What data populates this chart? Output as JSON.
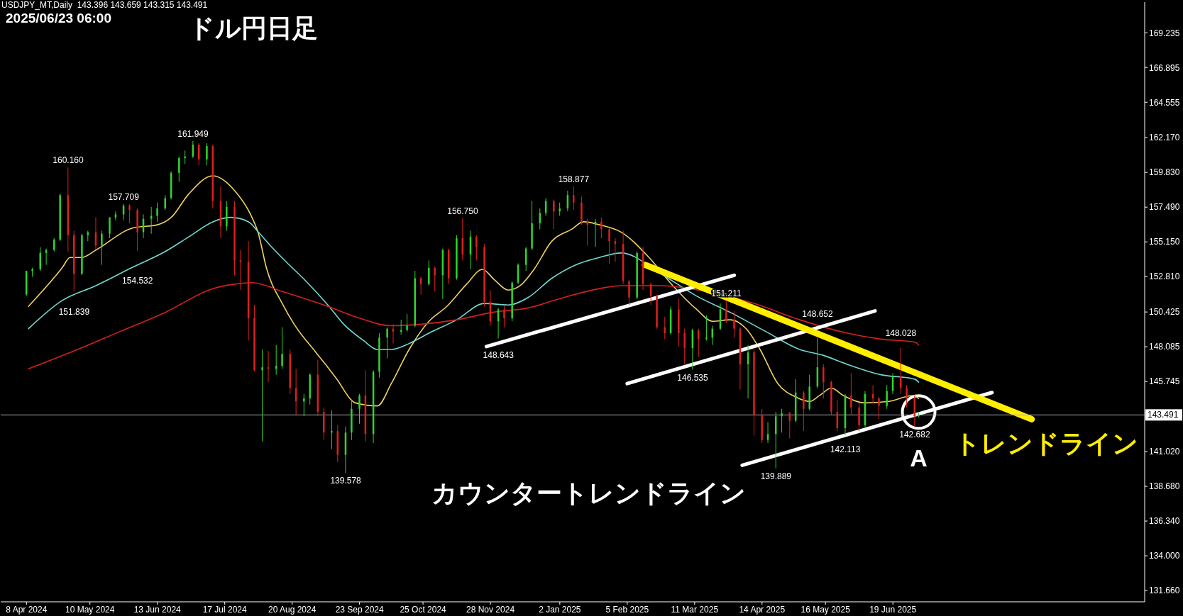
{
  "chart_data": {
    "type": "candlestick",
    "title": "ドル円日足",
    "subtitle": "2025/06/23 06:00",
    "annotations": [
      "USDJPY_MT,Daily  143.396 143.659 143.315 143.491",
      "カウンタートレンドライン",
      "A",
      {
        "text": "160.160",
        "x": "2024-04-29",
        "y": 160.16
      },
      {
        "text": "151.839",
        "x": "2024-05-02",
        "y": 151.839
      },
      {
        "text": "157.709",
        "x": "2024-05-27",
        "y": 157.709
      },
      {
        "text": "154.532",
        "x": "2024-06-03",
        "y": 154.532
      },
      {
        "text": "161.949",
        "x": "2024-07-01",
        "y": 161.949
      },
      {
        "text": "139.578",
        "x": "2024-09-16",
        "y": 139.578
      },
      {
        "text": "156.750",
        "x": "2024-11-14",
        "y": 156.75
      },
      {
        "text": "148.643",
        "x": "2024-12-02",
        "y": 148.643
      },
      {
        "text": "158.877",
        "x": "2025-01-09",
        "y": 158.877
      },
      {
        "text": "146.535",
        "x": "2025-03-10",
        "y": 146.535
      },
      {
        "text": "151.211",
        "x": "2025-03-27",
        "y": 151.211
      },
      {
        "text": "139.889",
        "x": "2025-04-21",
        "y": 139.889
      },
      {
        "text": "148.652",
        "x": "2025-05-12",
        "y": 148.652
      },
      {
        "text": "142.113",
        "x": "2025-05-26",
        "y": 142.113
      },
      {
        "text": "148.028",
        "x": "2025-06-23",
        "y": 148.028
      },
      {
        "text": "142.682",
        "x": "2025-06-30",
        "y": 142.682
      }
    ],
    "x": [
      "2024-04-08",
      "2024-04-11",
      "2024-04-15",
      "2024-04-18",
      "2024-04-22",
      "2024-04-25",
      "2024-04-29",
      "2024-05-02",
      "2024-05-06",
      "2024-05-09",
      "2024-05-13",
      "2024-05-16",
      "2024-05-20",
      "2024-05-23",
      "2024-05-27",
      "2024-05-30",
      "2024-06-03",
      "2024-06-06",
      "2024-06-10",
      "2024-06-13",
      "2024-06-17",
      "2024-06-20",
      "2024-06-24",
      "2024-06-27",
      "2024-07-01",
      "2024-07-04",
      "2024-07-08",
      "2024-07-11",
      "2024-07-15",
      "2024-07-18",
      "2024-07-22",
      "2024-07-25",
      "2024-07-29",
      "2024-08-01",
      "2024-08-05",
      "2024-08-08",
      "2024-08-12",
      "2024-08-15",
      "2024-08-19",
      "2024-08-22",
      "2024-08-26",
      "2024-08-29",
      "2024-09-02",
      "2024-09-05",
      "2024-09-09",
      "2024-09-12",
      "2024-09-16",
      "2024-09-19",
      "2024-09-23",
      "2024-09-26",
      "2024-09-30",
      "2024-10-03",
      "2024-10-07",
      "2024-10-10",
      "2024-10-14",
      "2024-10-17",
      "2024-10-21",
      "2024-10-24",
      "2024-10-28",
      "2024-10-31",
      "2024-11-04",
      "2024-11-07",
      "2024-11-11",
      "2024-11-14",
      "2024-11-18",
      "2024-11-21",
      "2024-11-25",
      "2024-11-28",
      "2024-12-02",
      "2024-12-05",
      "2024-12-09",
      "2024-12-12",
      "2024-12-16",
      "2024-12-19",
      "2024-12-23",
      "2024-12-26",
      "2024-12-30",
      "2025-01-02",
      "2025-01-06",
      "2025-01-09",
      "2025-01-13",
      "2025-01-16",
      "2025-01-20",
      "2025-01-23",
      "2025-01-27",
      "2025-01-30",
      "2025-02-03",
      "2025-02-06",
      "2025-02-10",
      "2025-02-13",
      "2025-02-17",
      "2025-02-20",
      "2025-02-24",
      "2025-02-27",
      "2025-03-03",
      "2025-03-06",
      "2025-03-10",
      "2025-03-13",
      "2025-03-17",
      "2025-03-20",
      "2025-03-24",
      "2025-03-27",
      "2025-03-31",
      "2025-04-03",
      "2025-04-07",
      "2025-04-10",
      "2025-04-14",
      "2025-04-17",
      "2025-04-21",
      "2025-04-24",
      "2025-04-28",
      "2025-05-01",
      "2025-05-05",
      "2025-05-08",
      "2025-05-12",
      "2025-05-15",
      "2025-05-19",
      "2025-05-22",
      "2025-05-26",
      "2025-05-29",
      "2025-06-02",
      "2025-06-05",
      "2025-06-09",
      "2025-06-12",
      "2025-06-16",
      "2025-06-19",
      "2025-06-23",
      "2025-06-26",
      "2025-06-30",
      "2025-07-02"
    ],
    "ohlc": [
      [
        151.6,
        153.2,
        151.5,
        153.2
      ],
      [
        153.2,
        153.4,
        152.8,
        153.3
      ],
      [
        153.3,
        154.8,
        153.2,
        154.4
      ],
      [
        154.4,
        154.7,
        153.6,
        154.6
      ],
      [
        154.6,
        155.4,
        154.5,
        155.3
      ],
      [
        155.3,
        158.4,
        155.2,
        158.3
      ],
      [
        158.3,
        160.16,
        154.5,
        155.6
      ],
      [
        155.6,
        155.9,
        151.839,
        153.0
      ],
      [
        153.0,
        155.7,
        152.9,
        155.6
      ],
      [
        155.6,
        155.9,
        155.2,
        155.8
      ],
      [
        155.8,
        156.8,
        154.6,
        154.9
      ],
      [
        154.9,
        155.9,
        153.6,
        155.7
      ],
      [
        155.7,
        156.8,
        155.4,
        156.8
      ],
      [
        156.8,
        157.2,
        156.6,
        157.0
      ],
      [
        157.0,
        157.709,
        156.6,
        157.6
      ],
      [
        157.6,
        157.7,
        156.4,
        157.3
      ],
      [
        157.3,
        157.4,
        154.532,
        155.8
      ],
      [
        155.8,
        157.0,
        155.4,
        156.7
      ],
      [
        156.7,
        157.5,
        155.7,
        156.9
      ],
      [
        156.9,
        157.8,
        156.5,
        157.4
      ],
      [
        157.4,
        158.3,
        157.3,
        158.1
      ],
      [
        158.1,
        159.9,
        158.0,
        159.8
      ],
      [
        159.8,
        160.9,
        159.2,
        160.8
      ],
      [
        160.8,
        161.3,
        160.4,
        160.9
      ],
      [
        160.9,
        161.949,
        160.8,
        161.7
      ],
      [
        161.7,
        161.8,
        160.3,
        160.7
      ],
      [
        160.7,
        161.8,
        160.3,
        161.6
      ],
      [
        161.6,
        161.7,
        157.4,
        157.9
      ],
      [
        157.9,
        158.9,
        155.4,
        156.2
      ],
      [
        156.2,
        157.9,
        155.9,
        157.5
      ],
      [
        157.5,
        157.9,
        152.9,
        153.9
      ],
      [
        153.9,
        154.6,
        151.9,
        153.8
      ],
      [
        153.8,
        155.2,
        148.5,
        150.0
      ],
      [
        150.0,
        150.9,
        146.4,
        146.5
      ],
      [
        146.5,
        147.9,
        141.7,
        146.7
      ],
      [
        146.7,
        147.8,
        145.7,
        146.6
      ],
      [
        146.6,
        148.2,
        146.2,
        146.8
      ],
      [
        146.8,
        149.4,
        146.6,
        147.6
      ],
      [
        147.6,
        147.9,
        144.9,
        145.3
      ],
      [
        145.3,
        146.6,
        143.5,
        144.4
      ],
      [
        144.4,
        144.9,
        143.4,
        144.6
      ],
      [
        144.6,
        146.3,
        144.2,
        146.2
      ],
      [
        146.2,
        147.2,
        143.4,
        143.7
      ],
      [
        143.7,
        144.0,
        141.8,
        142.3
      ],
      [
        142.3,
        143.8,
        141.2,
        142.4
      ],
      [
        142.4,
        142.8,
        140.3,
        140.8
      ],
      [
        140.8,
        142.7,
        139.578,
        142.3
      ],
      [
        142.3,
        144.5,
        141.8,
        143.9
      ],
      [
        143.9,
        144.9,
        142.9,
        144.8
      ],
      [
        144.8,
        146.5,
        141.7,
        142.2
      ],
      [
        142.2,
        146.5,
        141.6,
        146.4
      ],
      [
        146.4,
        149.0,
        146.0,
        148.7
      ],
      [
        148.7,
        149.4,
        147.3,
        149.3
      ],
      [
        149.3,
        149.6,
        148.3,
        149.1
      ],
      [
        149.1,
        149.9,
        148.9,
        149.2
      ],
      [
        149.2,
        150.3,
        149.1,
        149.5
      ],
      [
        149.5,
        153.2,
        149.4,
        152.7
      ],
      [
        152.7,
        152.8,
        151.6,
        152.3
      ],
      [
        152.3,
        153.9,
        152.2,
        153.4
      ],
      [
        153.4,
        153.5,
        151.8,
        152.9
      ],
      [
        152.9,
        154.7,
        151.3,
        154.6
      ],
      [
        154.6,
        154.7,
        152.3,
        152.7
      ],
      [
        152.7,
        155.6,
        152.6,
        155.4
      ],
      [
        155.4,
        156.75,
        153.9,
        154.3
      ],
      [
        154.3,
        155.9,
        153.3,
        155.5
      ],
      [
        155.5,
        155.6,
        153.9,
        154.8
      ],
      [
        154.8,
        155.0,
        150.8,
        151.1
      ],
      [
        151.1,
        151.9,
        149.5,
        149.8
      ],
      [
        149.8,
        150.7,
        148.643,
        150.6
      ],
      [
        150.6,
        150.9,
        149.4,
        150.0
      ],
      [
        150.0,
        152.5,
        149.8,
        152.4
      ],
      [
        152.4,
        153.7,
        152.3,
        153.6
      ],
      [
        153.6,
        154.8,
        153.2,
        154.7
      ],
      [
        154.7,
        157.9,
        154.6,
        156.4
      ],
      [
        156.4,
        157.4,
        156.0,
        157.1
      ],
      [
        157.1,
        158.1,
        156.9,
        157.9
      ],
      [
        157.9,
        158.0,
        156.0,
        157.2
      ],
      [
        157.2,
        157.8,
        156.9,
        157.4
      ],
      [
        157.4,
        158.6,
        157.2,
        158.3
      ],
      [
        158.3,
        158.877,
        157.3,
        157.8
      ],
      [
        157.8,
        158.2,
        156.3,
        156.5
      ],
      [
        156.5,
        156.7,
        154.9,
        156.3
      ],
      [
        156.3,
        156.7,
        154.8,
        156.5
      ],
      [
        156.5,
        156.8,
        155.4,
        156.0
      ],
      [
        156.0,
        156.1,
        153.7,
        155.2
      ],
      [
        155.2,
        155.4,
        153.8,
        155.0
      ],
      [
        155.0,
        155.9,
        152.3,
        152.5
      ],
      [
        152.5,
        152.6,
        150.9,
        151.4
      ],
      [
        151.4,
        154.5,
        151.3,
        154.4
      ],
      [
        154.4,
        154.8,
        151.9,
        152.3
      ],
      [
        152.3,
        152.4,
        150.9,
        151.5
      ],
      [
        151.5,
        151.6,
        149.3,
        149.4
      ],
      [
        149.4,
        150.1,
        148.6,
        149.0
      ],
      [
        149.0,
        150.8,
        148.9,
        150.6
      ],
      [
        150.6,
        151.3,
        148.1,
        149.0
      ],
      [
        149.0,
        149.3,
        146.9,
        148.0
      ],
      [
        148.0,
        149.3,
        146.535,
        149.2
      ],
      [
        149.2,
        149.3,
        147.4,
        148.6
      ],
      [
        148.6,
        150.2,
        148.5,
        148.7
      ],
      [
        148.7,
        149.5,
        148.2,
        149.3
      ],
      [
        149.3,
        151.0,
        149.2,
        150.6
      ],
      [
        150.6,
        151.211,
        149.7,
        149.9
      ],
      [
        149.9,
        150.5,
        148.7,
        149.3
      ],
      [
        149.3,
        149.4,
        145.2,
        146.9
      ],
      [
        146.9,
        148.2,
        144.6,
        147.7
      ],
      [
        147.7,
        148.0,
        142.1,
        143.5
      ],
      [
        143.5,
        143.9,
        141.6,
        141.8
      ],
      [
        141.8,
        143.0,
        141.6,
        142.2
      ],
      [
        142.2,
        143.7,
        139.889,
        143.4
      ],
      [
        143.4,
        143.9,
        142.3,
        143.6
      ],
      [
        143.6,
        143.7,
        141.9,
        143.1
      ],
      [
        143.1,
        145.9,
        143.0,
        145.0
      ],
      [
        145.0,
        145.1,
        142.4,
        143.9
      ],
      [
        143.9,
        146.2,
        143.8,
        145.4
      ],
      [
        145.4,
        148.652,
        145.3,
        146.7
      ],
      [
        146.7,
        146.9,
        144.6,
        145.7
      ],
      [
        145.7,
        145.8,
        143.5,
        143.7
      ],
      [
        143.7,
        144.5,
        142.4,
        142.6
      ],
      [
        142.6,
        144.9,
        142.113,
        144.8
      ],
      [
        144.8,
        146.3,
        143.5,
        144.0
      ],
      [
        144.0,
        144.3,
        142.4,
        142.8
      ],
      [
        142.8,
        145.1,
        142.7,
        144.9
      ],
      [
        144.9,
        145.5,
        144.3,
        144.6
      ],
      [
        144.6,
        144.7,
        143.2,
        144.1
      ],
      [
        144.1,
        145.5,
        143.9,
        145.1
      ],
      [
        145.1,
        146.3,
        144.9,
        146.1
      ],
      [
        146.1,
        148.028,
        144.9,
        145.3
      ],
      [
        145.3,
        145.5,
        144.0,
        144.6
      ],
      [
        144.6,
        144.8,
        142.682,
        143.4
      ],
      [
        143.396,
        143.659,
        143.315,
        143.491
      ]
    ],
    "colors": [
      "#2fd52f",
      "#2fd52f",
      "#2fd52f",
      "#2fd52f",
      "#2fd52f",
      "#2fd52f",
      "#dc1f1f",
      "#dc1f1f",
      "#2fd52f",
      "#2fd52f",
      "#dc1f1f",
      "#2fd52f",
      "#2fd52f",
      "#2fd52f",
      "#2fd52f",
      "#dc1f1f",
      "#dc1f1f",
      "#2fd52f",
      "#2fd52f",
      "#2fd52f",
      "#2fd52f",
      "#2fd52f",
      "#2fd52f",
      "#2fd52f",
      "#2fd52f",
      "#dc1f1f",
      "#2fd52f",
      "#dc1f1f",
      "#dc1f1f",
      "#2fd52f",
      "#dc1f1f",
      "#dc1f1f",
      "#dc1f1f",
      "#dc1f1f",
      "#2fd52f",
      "#dc1f1f",
      "#2fd52f",
      "#2fd52f",
      "#dc1f1f",
      "#dc1f1f",
      "#2fd52f",
      "#2fd52f",
      "#dc1f1f",
      "#dc1f1f",
      "#2fd52f",
      "#dc1f1f",
      "#2fd52f",
      "#2fd52f",
      "#2fd52f",
      "#dc1f1f",
      "#2fd52f",
      "#2fd52f",
      "#2fd52f",
      "#dc1f1f",
      "#2fd52f",
      "#2fd52f",
      "#2fd52f",
      "#dc1f1f",
      "#2fd52f",
      "#dc1f1f",
      "#2fd52f",
      "#dc1f1f",
      "#2fd52f",
      "#dc1f1f",
      "#2fd52f",
      "#dc1f1f",
      "#dc1f1f",
      "#dc1f1f",
      "#2fd52f",
      "#dc1f1f",
      "#2fd52f",
      "#2fd52f",
      "#2fd52f",
      "#2fd52f",
      "#2fd52f",
      "#2fd52f",
      "#dc1f1f",
      "#2fd52f",
      "#2fd52f",
      "#dc1f1f",
      "#dc1f1f",
      "#dc1f1f",
      "#2fd52f",
      "#dc1f1f",
      "#dc1f1f",
      "#dc1f1f",
      "#dc1f1f",
      "#dc1f1f",
      "#2fd52f",
      "#dc1f1f",
      "#dc1f1f",
      "#dc1f1f",
      "#dc1f1f",
      "#2fd52f",
      "#dc1f1f",
      "#dc1f1f",
      "#2fd52f",
      "#dc1f1f",
      "#2fd52f",
      "#2fd52f",
      "#2fd52f",
      "#dc1f1f",
      "#dc1f1f",
      "#dc1f1f",
      "#2fd52f",
      "#dc1f1f",
      "#dc1f1f",
      "#2fd52f",
      "#2fd52f",
      "#2fd52f",
      "#dc1f1f",
      "#2fd52f",
      "#dc1f1f",
      "#2fd52f",
      "#2fd52f",
      "#dc1f1f",
      "#dc1f1f",
      "#dc1f1f",
      "#2fd52f",
      "#dc1f1f",
      "#dc1f1f",
      "#2fd52f",
      "#dc1f1f",
      "#dc1f1f",
      "#2fd52f",
      "#2fd52f",
      "#dc1f1f",
      "#dc1f1f",
      "#dc1f1f",
      "#2fd52f"
    ],
    "series": [
      {
        "type": "line",
        "color": "#f0d060",
        "x": [
          "2024-04-09",
          "2024-04-26",
          "2024-04-30",
          "2024-05-06",
          "2024-05-13",
          "2024-06-01",
          "2024-06-13",
          "2024-06-20",
          "2024-06-29",
          "2024-07-11",
          "2024-07-22",
          "2024-07-30",
          "2024-08-03",
          "2024-08-07",
          "2024-08-15",
          "2024-08-21",
          "2024-09-01",
          "2024-09-07",
          "2024-09-11",
          "2024-09-21",
          "2024-10-02",
          "2024-10-09",
          "2024-10-18",
          "2024-10-28",
          "2024-11-06",
          "2024-11-16",
          "2024-11-24",
          "2024-11-30",
          "2024-12-07",
          "2024-12-13",
          "2024-12-20",
          "2024-12-29",
          "2025-01-08",
          "2025-01-14",
          "2025-01-22",
          "2025-02-02",
          "2025-02-16",
          "2025-02-28",
          "2025-03-12",
          "2025-03-20",
          "2025-03-29",
          "2025-04-06",
          "2025-04-13",
          "2025-04-22",
          "2025-05-01",
          "2025-05-08",
          "2025-05-13",
          "2025-05-19",
          "2025-05-25",
          "2025-06-05",
          "2025-06-17",
          "2025-06-29",
          "2025-07-02"
        ],
        "values": [
          150.8,
          153.4,
          154.1,
          154.1,
          154.6,
          156.1,
          156.3,
          156.8,
          158.4,
          159.6,
          158.6,
          157.0,
          155.7,
          153.4,
          151.0,
          149.6,
          147.7,
          146.7,
          146.0,
          144.3,
          144.1,
          145.6,
          147.9,
          149.8,
          150.8,
          152.3,
          153.3,
          152.6,
          151.9,
          152.2,
          153.3,
          155.2,
          156.0,
          156.5,
          156.3,
          155.8,
          154.1,
          152.2,
          150.6,
          149.8,
          149.9,
          149.3,
          147.9,
          145.6,
          144.7,
          144.4,
          144.8,
          145.3,
          144.8,
          144.3,
          144.4,
          144.8,
          144.6
        ]
      },
      {
        "type": "line",
        "color": "#70d8d0",
        "x": [
          "2024-04-09",
          "2024-04-26",
          "2024-05-13",
          "2024-05-31",
          "2024-06-17",
          "2024-06-29",
          "2024-07-11",
          "2024-07-20",
          "2024-07-29",
          "2024-08-03",
          "2024-08-09",
          "2024-08-17",
          "2024-08-27",
          "2024-09-07",
          "2024-09-15",
          "2024-09-25",
          "2024-10-02",
          "2024-10-09",
          "2024-10-18",
          "2024-10-28",
          "2024-11-11",
          "2024-11-25",
          "2024-12-07",
          "2024-12-17",
          "2024-12-29",
          "2025-01-10",
          "2025-01-22",
          "2025-02-02",
          "2025-02-22",
          "2025-03-12",
          "2025-03-29",
          "2025-04-16",
          "2025-05-03",
          "2025-05-15",
          "2025-05-27",
          "2025-06-13",
          "2025-06-30",
          "2025-07-02"
        ],
        "values": [
          149.3,
          151.2,
          152.2,
          153.4,
          154.5,
          155.5,
          156.5,
          156.8,
          156.5,
          155.8,
          154.9,
          153.8,
          152.5,
          150.9,
          149.6,
          148.5,
          147.9,
          147.9,
          148.3,
          149.0,
          149.9,
          151.0,
          150.9,
          151.4,
          152.7,
          153.6,
          154.1,
          154.4,
          153.0,
          151.5,
          150.4,
          149.1,
          147.9,
          147.5,
          146.9,
          146.2,
          145.9,
          145.7
        ]
      },
      {
        "type": "line",
        "color": "#d42020",
        "x": [
          "2024-04-09",
          "2024-05-02",
          "2024-05-25",
          "2024-06-17",
          "2024-07-11",
          "2024-07-22",
          "2024-07-31",
          "2024-08-15",
          "2024-09-07",
          "2024-09-21",
          "2024-10-09",
          "2024-10-24",
          "2024-11-11",
          "2024-11-29",
          "2024-12-17",
          "2025-01-04",
          "2025-01-22",
          "2025-02-02",
          "2025-02-22",
          "2025-03-17",
          "2025-04-10",
          "2025-05-03",
          "2025-05-27",
          "2025-06-13",
          "2025-06-30",
          "2025-07-02"
        ],
        "values": [
          146.6,
          147.8,
          149.1,
          150.4,
          152.0,
          152.3,
          152.4,
          151.8,
          150.8,
          150.1,
          149.5,
          149.6,
          149.9,
          150.4,
          150.7,
          151.4,
          152.0,
          152.2,
          152.2,
          151.8,
          151.0,
          149.9,
          149.0,
          148.6,
          148.4,
          148.2
        ]
      },
      {
        "type": "line",
        "color": "#ffffff",
        "x": [
          "2024-11-26",
          "2025-03-31"
        ],
        "values": [
          148.1,
          152.9
        ]
      },
      {
        "type": "line",
        "color": "#ffffff",
        "x": [
          "2025-02-05",
          "2025-06-10"
        ],
        "values": [
          145.6,
          150.5
        ]
      },
      {
        "type": "line",
        "color": "#ffffff",
        "x": [
          "2025-04-04",
          "2025-08-08"
        ],
        "values": [
          140.1,
          145.0
        ]
      },
      {
        "type": "line",
        "name": "トレンドライン",
        "color": "#ffee00",
        "x": [
          "2025-02-14",
          "2025-08-28"
        ],
        "values": [
          153.6,
          143.2
        ]
      }
    ],
    "xlim": [
      "2024-03-26",
      "2025-10-24"
    ],
    "xticks": [
      {
        "value": "2024-04-08",
        "label": "8 Apr 2024"
      },
      {
        "value": "2024-05-10",
        "label": "10 May 2024"
      },
      {
        "value": "2024-06-13",
        "label": "13 Jun 2024"
      },
      {
        "value": "2024-07-17",
        "label": "17 Jul 2024"
      },
      {
        "value": "2024-08-20",
        "label": "20 Aug 2024"
      },
      {
        "value": "2024-09-23",
        "label": "23 Sep 2024"
      },
      {
        "value": "2024-10-25",
        "label": "25 Oct 2024"
      },
      {
        "value": "2024-11-28",
        "label": "28 Nov 2024"
      },
      {
        "value": "2025-01-02",
        "label": "2 Jan 2025"
      },
      {
        "value": "2025-02-05",
        "label": "5 Feb 2025"
      },
      {
        "value": "2025-03-11",
        "label": "11 Mar 2025"
      },
      {
        "value": "2025-04-14",
        "label": "14 Apr 2025"
      },
      {
        "value": "2025-05-16",
        "label": "16 May 2025"
      },
      {
        "value": "2025-06-19",
        "label": "19 Jun 2025"
      }
    ],
    "ylim": [
      130.9,
      171.3
    ],
    "yticks": [
      {
        "value": 131.66,
        "label": "131.660"
      },
      {
        "value": 134,
        "label": "134.000"
      },
      {
        "value": 136.34,
        "label": "136.340"
      },
      {
        "value": 138.68,
        "label": "138.680"
      },
      {
        "value": 141.02,
        "label": "141.020"
      },
      145.745,
      148.085,
      150.425,
      {
        "value": 152.81,
        "label": "152.810"
      },
      {
        "value": 155.15,
        "label": "155.150"
      },
      {
        "value": 157.49,
        "label": "157.490"
      },
      {
        "value": 159.83,
        "label": "159.830"
      },
      {
        "value": 162.17,
        "label": "162.170"
      },
      164.555,
      166.895,
      169.235
    ],
    "ref_lines": [
      {
        "axis": "y",
        "value": 143.491,
        "label": "143.491",
        "color": "#a8a8a8"
      }
    ]
  }
}
